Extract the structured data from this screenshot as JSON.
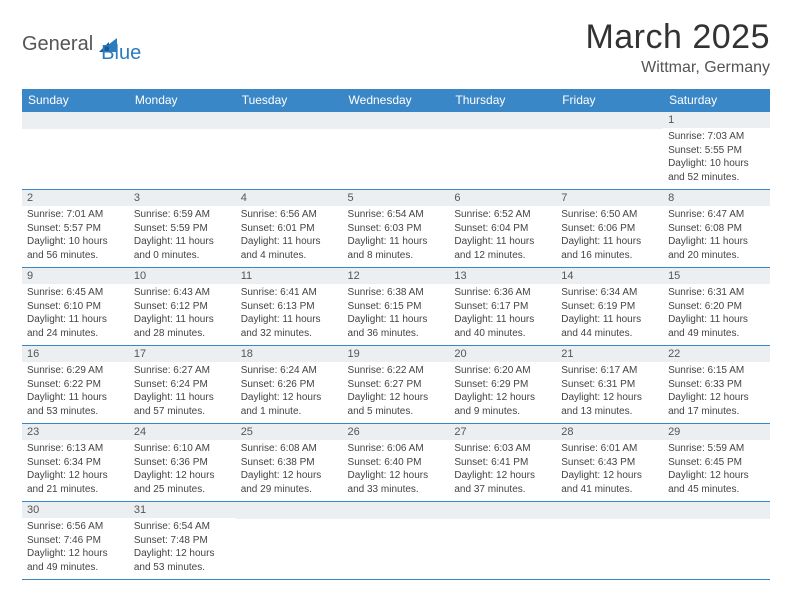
{
  "logo": {
    "part1": "General",
    "part2": "Blue"
  },
  "title": "March 2025",
  "location": "Wittmar, Germany",
  "colors": {
    "header_bg": "#3a87c8",
    "header_text": "#ffffff",
    "daynum_bg": "#eceff2",
    "border": "#3a87c8",
    "logo_accent": "#2b7bbf",
    "text": "#333333"
  },
  "dayHeaders": [
    "Sunday",
    "Monday",
    "Tuesday",
    "Wednesday",
    "Thursday",
    "Friday",
    "Saturday"
  ],
  "weeks": [
    [
      null,
      null,
      null,
      null,
      null,
      null,
      {
        "n": "1",
        "sr": "Sunrise: 7:03 AM",
        "ss": "Sunset: 5:55 PM",
        "dl": "Daylight: 10 hours and 52 minutes."
      }
    ],
    [
      {
        "n": "2",
        "sr": "Sunrise: 7:01 AM",
        "ss": "Sunset: 5:57 PM",
        "dl": "Daylight: 10 hours and 56 minutes."
      },
      {
        "n": "3",
        "sr": "Sunrise: 6:59 AM",
        "ss": "Sunset: 5:59 PM",
        "dl": "Daylight: 11 hours and 0 minutes."
      },
      {
        "n": "4",
        "sr": "Sunrise: 6:56 AM",
        "ss": "Sunset: 6:01 PM",
        "dl": "Daylight: 11 hours and 4 minutes."
      },
      {
        "n": "5",
        "sr": "Sunrise: 6:54 AM",
        "ss": "Sunset: 6:03 PM",
        "dl": "Daylight: 11 hours and 8 minutes."
      },
      {
        "n": "6",
        "sr": "Sunrise: 6:52 AM",
        "ss": "Sunset: 6:04 PM",
        "dl": "Daylight: 11 hours and 12 minutes."
      },
      {
        "n": "7",
        "sr": "Sunrise: 6:50 AM",
        "ss": "Sunset: 6:06 PM",
        "dl": "Daylight: 11 hours and 16 minutes."
      },
      {
        "n": "8",
        "sr": "Sunrise: 6:47 AM",
        "ss": "Sunset: 6:08 PM",
        "dl": "Daylight: 11 hours and 20 minutes."
      }
    ],
    [
      {
        "n": "9",
        "sr": "Sunrise: 6:45 AM",
        "ss": "Sunset: 6:10 PM",
        "dl": "Daylight: 11 hours and 24 minutes."
      },
      {
        "n": "10",
        "sr": "Sunrise: 6:43 AM",
        "ss": "Sunset: 6:12 PM",
        "dl": "Daylight: 11 hours and 28 minutes."
      },
      {
        "n": "11",
        "sr": "Sunrise: 6:41 AM",
        "ss": "Sunset: 6:13 PM",
        "dl": "Daylight: 11 hours and 32 minutes."
      },
      {
        "n": "12",
        "sr": "Sunrise: 6:38 AM",
        "ss": "Sunset: 6:15 PM",
        "dl": "Daylight: 11 hours and 36 minutes."
      },
      {
        "n": "13",
        "sr": "Sunrise: 6:36 AM",
        "ss": "Sunset: 6:17 PM",
        "dl": "Daylight: 11 hours and 40 minutes."
      },
      {
        "n": "14",
        "sr": "Sunrise: 6:34 AM",
        "ss": "Sunset: 6:19 PM",
        "dl": "Daylight: 11 hours and 44 minutes."
      },
      {
        "n": "15",
        "sr": "Sunrise: 6:31 AM",
        "ss": "Sunset: 6:20 PM",
        "dl": "Daylight: 11 hours and 49 minutes."
      }
    ],
    [
      {
        "n": "16",
        "sr": "Sunrise: 6:29 AM",
        "ss": "Sunset: 6:22 PM",
        "dl": "Daylight: 11 hours and 53 minutes."
      },
      {
        "n": "17",
        "sr": "Sunrise: 6:27 AM",
        "ss": "Sunset: 6:24 PM",
        "dl": "Daylight: 11 hours and 57 minutes."
      },
      {
        "n": "18",
        "sr": "Sunrise: 6:24 AM",
        "ss": "Sunset: 6:26 PM",
        "dl": "Daylight: 12 hours and 1 minute."
      },
      {
        "n": "19",
        "sr": "Sunrise: 6:22 AM",
        "ss": "Sunset: 6:27 PM",
        "dl": "Daylight: 12 hours and 5 minutes."
      },
      {
        "n": "20",
        "sr": "Sunrise: 6:20 AM",
        "ss": "Sunset: 6:29 PM",
        "dl": "Daylight: 12 hours and 9 minutes."
      },
      {
        "n": "21",
        "sr": "Sunrise: 6:17 AM",
        "ss": "Sunset: 6:31 PM",
        "dl": "Daylight: 12 hours and 13 minutes."
      },
      {
        "n": "22",
        "sr": "Sunrise: 6:15 AM",
        "ss": "Sunset: 6:33 PM",
        "dl": "Daylight: 12 hours and 17 minutes."
      }
    ],
    [
      {
        "n": "23",
        "sr": "Sunrise: 6:13 AM",
        "ss": "Sunset: 6:34 PM",
        "dl": "Daylight: 12 hours and 21 minutes."
      },
      {
        "n": "24",
        "sr": "Sunrise: 6:10 AM",
        "ss": "Sunset: 6:36 PM",
        "dl": "Daylight: 12 hours and 25 minutes."
      },
      {
        "n": "25",
        "sr": "Sunrise: 6:08 AM",
        "ss": "Sunset: 6:38 PM",
        "dl": "Daylight: 12 hours and 29 minutes."
      },
      {
        "n": "26",
        "sr": "Sunrise: 6:06 AM",
        "ss": "Sunset: 6:40 PM",
        "dl": "Daylight: 12 hours and 33 minutes."
      },
      {
        "n": "27",
        "sr": "Sunrise: 6:03 AM",
        "ss": "Sunset: 6:41 PM",
        "dl": "Daylight: 12 hours and 37 minutes."
      },
      {
        "n": "28",
        "sr": "Sunrise: 6:01 AM",
        "ss": "Sunset: 6:43 PM",
        "dl": "Daylight: 12 hours and 41 minutes."
      },
      {
        "n": "29",
        "sr": "Sunrise: 5:59 AM",
        "ss": "Sunset: 6:45 PM",
        "dl": "Daylight: 12 hours and 45 minutes."
      }
    ],
    [
      {
        "n": "30",
        "sr": "Sunrise: 6:56 AM",
        "ss": "Sunset: 7:46 PM",
        "dl": "Daylight: 12 hours and 49 minutes."
      },
      {
        "n": "31",
        "sr": "Sunrise: 6:54 AM",
        "ss": "Sunset: 7:48 PM",
        "dl": "Daylight: 12 hours and 53 minutes."
      },
      null,
      null,
      null,
      null,
      null
    ]
  ]
}
